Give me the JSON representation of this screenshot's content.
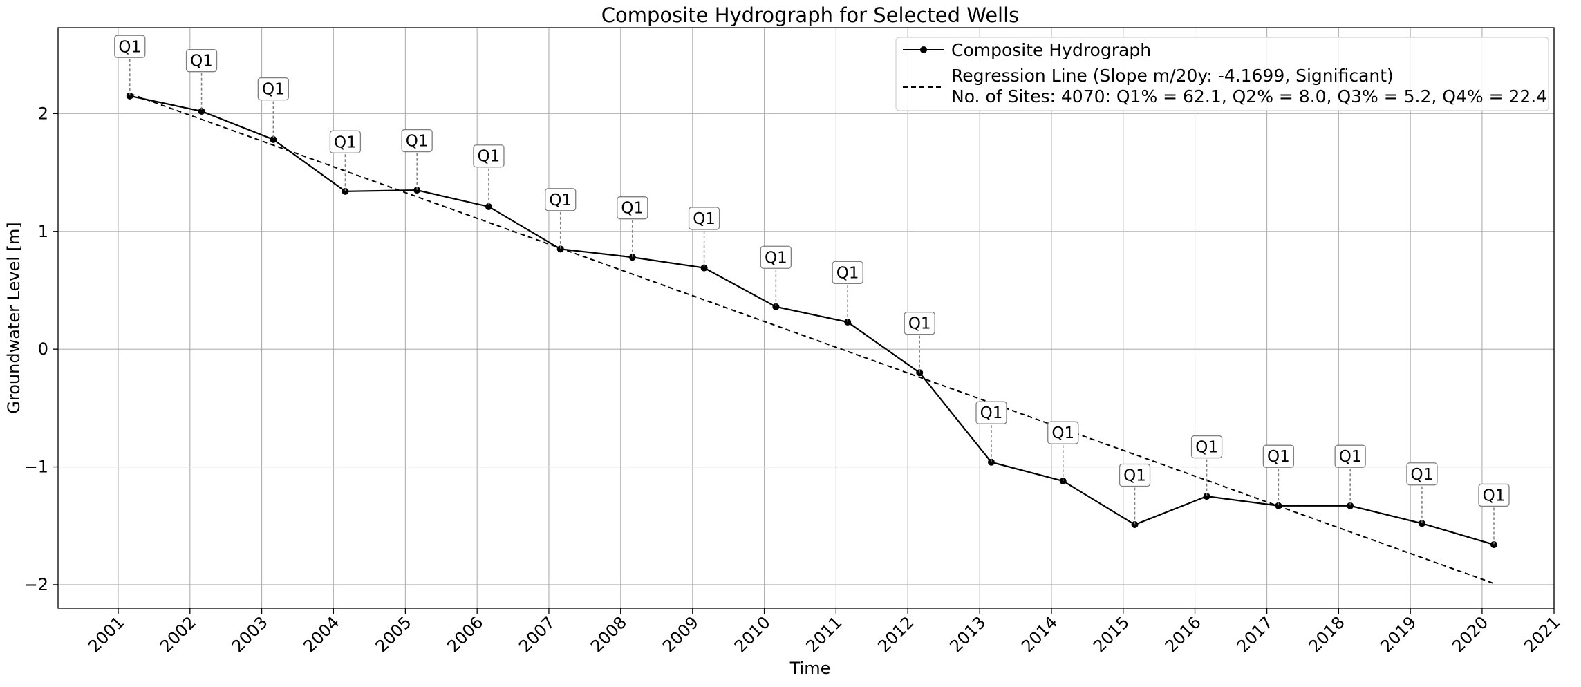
{
  "chart_data": {
    "type": "line",
    "title": "Composite Hydrograph for Selected Wells",
    "xlabel": "Time",
    "ylabel": "Groundwater Level [m]",
    "xlim": [
      "2000-03-01",
      "2021-01-01"
    ],
    "ylim": [
      -2.2,
      2.73
    ],
    "grid": true,
    "legend_position": "top-right",
    "x_ticks": [
      "2001",
      "2002",
      "2003",
      "2004",
      "2005",
      "2006",
      "2007",
      "2008",
      "2009",
      "2010",
      "2011",
      "2012",
      "2013",
      "2014",
      "2015",
      "2016",
      "2017",
      "2018",
      "2019",
      "2020",
      "2021"
    ],
    "y_ticks": [
      {
        "value": -2,
        "label": "−2"
      },
      {
        "value": -1,
        "label": "−1"
      },
      {
        "value": 0,
        "label": "0"
      },
      {
        "value": 1,
        "label": "1"
      },
      {
        "value": 2,
        "label": "2"
      }
    ],
    "series": [
      {
        "name": "Composite Hydrograph",
        "style": "solid",
        "marker": "circle",
        "color": "#000000",
        "x": [
          "2001-03-01",
          "2002-03-01",
          "2003-03-01",
          "2004-03-01",
          "2005-03-01",
          "2006-03-01",
          "2007-03-01",
          "2008-03-01",
          "2009-03-01",
          "2010-03-01",
          "2011-03-01",
          "2012-03-01",
          "2013-03-01",
          "2014-03-01",
          "2015-03-01",
          "2016-03-01",
          "2017-03-01",
          "2018-03-01",
          "2019-03-01",
          "2020-03-01"
        ],
        "y": [
          2.15,
          2.02,
          1.78,
          1.34,
          1.35,
          1.21,
          0.85,
          0.78,
          0.69,
          0.36,
          0.23,
          -0.2,
          -0.96,
          -1.12,
          -1.49,
          -1.25,
          -1.33,
          -1.33,
          -1.48,
          -1.66
        ],
        "annotations": [
          "Q1",
          "Q1",
          "Q1",
          "Q1",
          "Q1",
          "Q1",
          "Q1",
          "Q1",
          "Q1",
          "Q1",
          "Q1",
          "Q1",
          "Q1",
          "Q1",
          "Q1",
          "Q1",
          "Q1",
          "Q1",
          "Q1",
          "Q1"
        ],
        "annotation_y": [
          2.57,
          2.45,
          2.21,
          1.76,
          1.77,
          1.64,
          1.27,
          1.2,
          1.11,
          0.78,
          0.65,
          0.22,
          -0.54,
          -0.71,
          -1.07,
          -0.83,
          -0.91,
          -0.91,
          -1.06,
          -1.24
        ]
      },
      {
        "name": "Regression Line (Slope m/20y: -4.1699, Significant)",
        "style": "dashed",
        "marker": "none",
        "color": "#000000",
        "x": [
          "2001-03-01",
          "2020-03-01"
        ],
        "y": [
          2.17,
          -1.99
        ]
      }
    ],
    "legend_extra": "No. of Sites: 4070: Q1% = 62.1, Q2% = 8.0, Q3% = 5.2, Q4% = 22.4",
    "colors": {
      "line": "#000000",
      "grid": "#b0b0b0",
      "stem": "#808080",
      "box_border": "#808080"
    }
  }
}
